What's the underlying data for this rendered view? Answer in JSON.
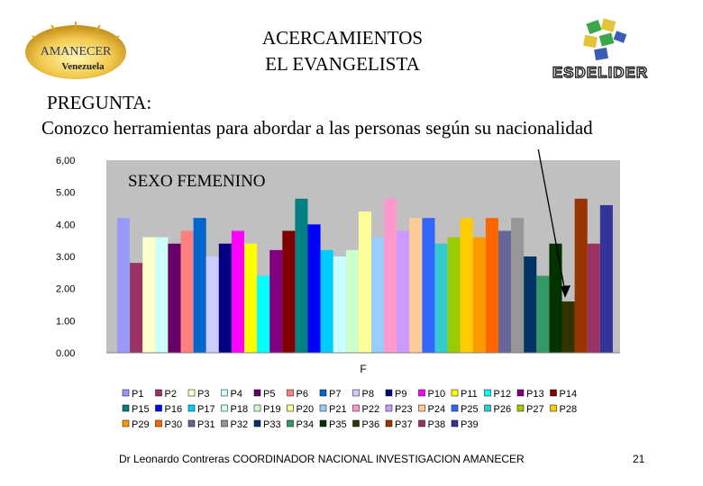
{
  "header": {
    "title_line1": "ACERCAMIENTOS",
    "title_line2": "EL EVANGELISTA",
    "logo_left_text1": "AMANECER",
    "logo_left_text2": "Venezuela",
    "logo_right_text": "ESDELIDER"
  },
  "question": {
    "label": "PREGUNTA:",
    "text": "Conozco herramientas para abordar a las personas según su nacionalidad"
  },
  "chart_data": {
    "type": "bar",
    "title": "SEXO FEMENINO",
    "xlabel": "F",
    "ylabel": "",
    "ylim": [
      0,
      6
    ],
    "yticks": [
      "0.00",
      "1.00",
      "2.00",
      "3.00",
      "4.00",
      "5.00",
      "6,00"
    ],
    "series": [
      {
        "name": "P1",
        "value": 4.2,
        "color": "#9999FF"
      },
      {
        "name": "P2",
        "value": 2.8,
        "color": "#993366"
      },
      {
        "name": "P3",
        "value": 3.6,
        "color": "#FFFFCC"
      },
      {
        "name": "P4",
        "value": 3.6,
        "color": "#CCFFFF"
      },
      {
        "name": "P5",
        "value": 3.4,
        "color": "#660066"
      },
      {
        "name": "P6",
        "value": 3.8,
        "color": "#FF8080"
      },
      {
        "name": "P7",
        "value": 4.2,
        "color": "#0066CC"
      },
      {
        "name": "P8",
        "value": 3.0,
        "color": "#CCCCFF"
      },
      {
        "name": "P9",
        "value": 3.4,
        "color": "#000080"
      },
      {
        "name": "P10",
        "value": 3.8,
        "color": "#FF00FF"
      },
      {
        "name": "P11",
        "value": 3.4,
        "color": "#FFFF00"
      },
      {
        "name": "P12",
        "value": 2.4,
        "color": "#00FFFF"
      },
      {
        "name": "P13",
        "value": 3.2,
        "color": "#800080"
      },
      {
        "name": "P14",
        "value": 3.8,
        "color": "#800000"
      },
      {
        "name": "P15",
        "value": 4.8,
        "color": "#008080"
      },
      {
        "name": "P16",
        "value": 4.0,
        "color": "#0000FF"
      },
      {
        "name": "P17",
        "value": 3.2,
        "color": "#00CCFF"
      },
      {
        "name": "P18",
        "value": 3.0,
        "color": "#CCFFFF"
      },
      {
        "name": "P19",
        "value": 3.2,
        "color": "#CCFFCC"
      },
      {
        "name": "P20",
        "value": 4.4,
        "color": "#FFFF99"
      },
      {
        "name": "P21",
        "value": 3.6,
        "color": "#99CCFF"
      },
      {
        "name": "P22",
        "value": 4.8,
        "color": "#FF99CC"
      },
      {
        "name": "P23",
        "value": 3.8,
        "color": "#CC99FF"
      },
      {
        "name": "P24",
        "value": 4.2,
        "color": "#FFCC99"
      },
      {
        "name": "P25",
        "value": 4.2,
        "color": "#3366FF"
      },
      {
        "name": "P26",
        "value": 3.4,
        "color": "#33CCCC"
      },
      {
        "name": "P27",
        "value": 3.6,
        "color": "#99CC00"
      },
      {
        "name": "P28",
        "value": 4.2,
        "color": "#FFCC00"
      },
      {
        "name": "P29",
        "value": 3.6,
        "color": "#FF9900"
      },
      {
        "name": "P30",
        "value": 4.2,
        "color": "#FF6600"
      },
      {
        "name": "P31",
        "value": 3.8,
        "color": "#666699"
      },
      {
        "name": "P32",
        "value": 4.2,
        "color": "#969696"
      },
      {
        "name": "P33",
        "value": 3.0,
        "color": "#003366"
      },
      {
        "name": "P34",
        "value": 2.4,
        "color": "#339966"
      },
      {
        "name": "P35",
        "value": 3.4,
        "color": "#003300"
      },
      {
        "name": "P36",
        "value": 1.6,
        "color": "#333300"
      },
      {
        "name": "P37",
        "value": 4.8,
        "color": "#993300"
      },
      {
        "name": "P38",
        "value": 3.4,
        "color": "#993366"
      },
      {
        "name": "P39",
        "value": 4.6,
        "color": "#333399"
      }
    ]
  },
  "footer": {
    "text": "Dr Leonardo Contreras   COORDINADOR NACIONAL INVESTIGACION AMANECER",
    "page": "21"
  },
  "colors": {
    "plot_background": "#C0C0C0",
    "axis": "#808080"
  }
}
